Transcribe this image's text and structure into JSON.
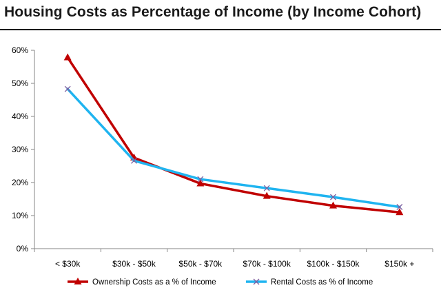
{
  "chart_data": {
    "type": "line",
    "title": "Housing Costs as Percentage of Income (by Income Cohort)",
    "xlabel": "",
    "ylabel": "",
    "categories": [
      "< $30k",
      "$30k - $50k",
      "$50k - $70k",
      "$70k - $100k",
      "$100k - $150k",
      "$150k +"
    ],
    "ylim": [
      0,
      60
    ],
    "yticks": [
      "0%",
      "10%",
      "20%",
      "30%",
      "40%",
      "50%",
      "60%"
    ],
    "grid": false,
    "legend_position": "bottom",
    "series": [
      {
        "name": "Ownership Costs as a % of Income",
        "values": [
          57.8,
          27.5,
          19.7,
          15.9,
          13.0,
          11.0
        ],
        "color": "#c00000",
        "marker": "triangle"
      },
      {
        "name": "Rental Costs as % of Income",
        "values": [
          48.3,
          26.6,
          21.0,
          18.3,
          15.6,
          12.6
        ],
        "color": "#1fb4f0",
        "marker": "x"
      }
    ]
  }
}
